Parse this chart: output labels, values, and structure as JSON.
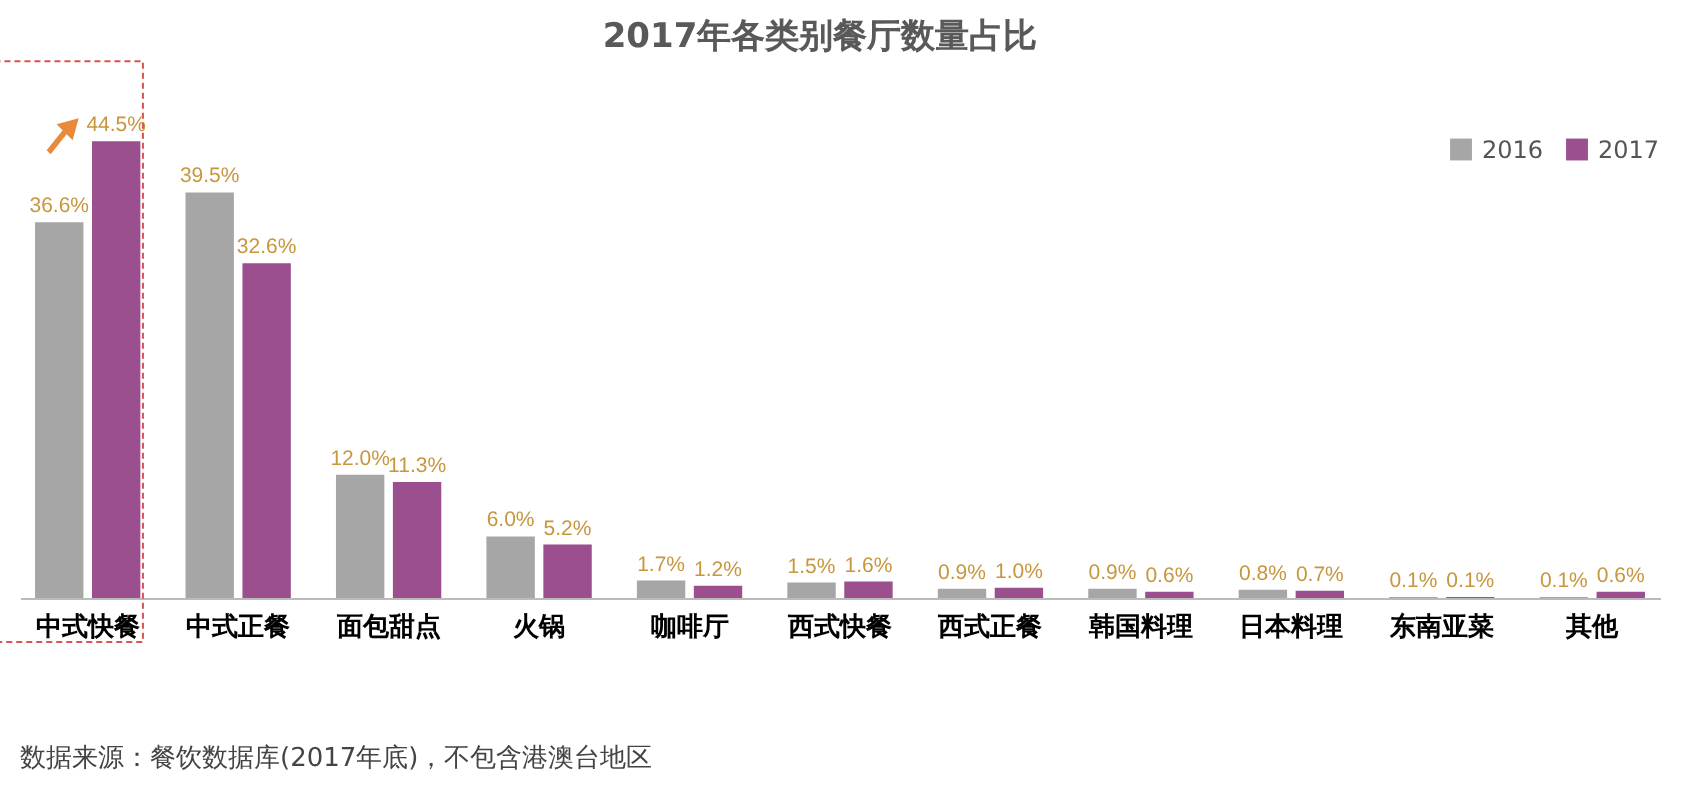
{
  "chart_data": {
    "type": "bar",
    "title": "2017年各类别餐厅数量占比",
    "categories": [
      "中式快餐",
      "中式正餐",
      "面包甜点",
      "火锅",
      "咖啡厅",
      "西式快餐",
      "西式正餐",
      "韩国料理",
      "日本料理",
      "东南亚菜",
      "其他"
    ],
    "series": [
      {
        "name": "2016",
        "color": "#a6a6a6",
        "values": [
          36.6,
          39.5,
          12.0,
          6.0,
          1.7,
          1.5,
          0.9,
          0.9,
          0.8,
          0.1,
          0.1
        ],
        "value_labels": [
          "36.6%",
          "39.5%",
          "12.0%",
          "6.0%",
          "1.7%",
          "1.5%",
          "0.9%",
          "0.9%",
          "0.8%",
          "0.1%",
          "0.1%"
        ]
      },
      {
        "name": "2017",
        "color": "#9b4f8e",
        "values": [
          44.5,
          32.6,
          11.3,
          5.2,
          1.2,
          1.6,
          1.0,
          0.6,
          0.7,
          0.1,
          0.6
        ],
        "value_labels": [
          "44.5%",
          "32.6%",
          "11.3%",
          "5.2%",
          "1.2%",
          "1.6%",
          "1.0%",
          "0.6%",
          "0.7%",
          "0.1%",
          "0.6%"
        ]
      }
    ],
    "legend": "top right",
    "grid": false,
    "annotations": [
      "数据来源：餐饮数据库(2017年底)，不包含港澳台地区"
    ]
  }
}
